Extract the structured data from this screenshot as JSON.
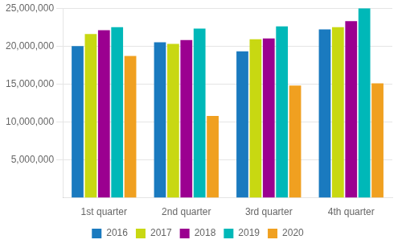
{
  "chart_data": {
    "type": "bar",
    "categories": [
      "1st quarter",
      "2nd quarter",
      "3rd quarter",
      "4th quarter"
    ],
    "series": [
      {
        "name": "2016",
        "color": "#1a7abf",
        "values": [
          20000000,
          20500000,
          19300000,
          22200000
        ]
      },
      {
        "name": "2017",
        "color": "#c8d812",
        "values": [
          21600000,
          20300000,
          20900000,
          22500000
        ]
      },
      {
        "name": "2018",
        "color": "#9b0090",
        "values": [
          22100000,
          20800000,
          21000000,
          23300000
        ]
      },
      {
        "name": "2019",
        "color": "#00b8b8",
        "values": [
          22500000,
          22300000,
          22600000,
          25000000
        ]
      },
      {
        "name": "2020",
        "color": "#f0a020",
        "values": [
          18700000,
          10800000,
          14800000,
          15100000
        ]
      }
    ],
    "ylim": [
      0,
      25000000
    ],
    "yticks": [
      {
        "value": 5000000,
        "label": "5,000,000"
      },
      {
        "value": 10000000,
        "label": "10,000,000"
      },
      {
        "value": 15000000,
        "label": "15,000,000"
      },
      {
        "value": 20000000,
        "label": "20,000,000"
      },
      {
        "value": 25000000,
        "label": "25,000,000"
      }
    ],
    "grid": true,
    "legend": "bottom"
  }
}
